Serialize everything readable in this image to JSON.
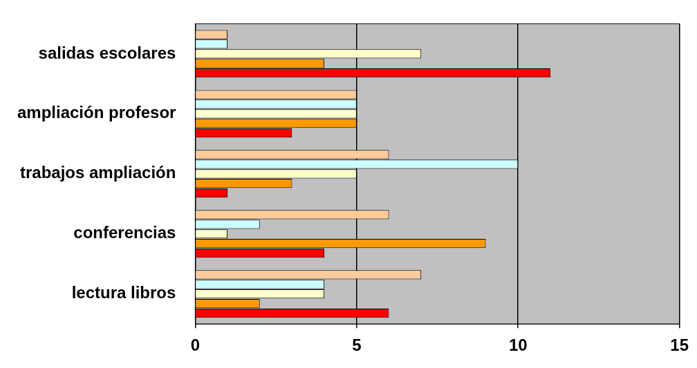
{
  "chart_data": {
    "type": "bar",
    "orientation": "horizontal",
    "categories": [
      "salidas escolares",
      "ampliación profesor",
      "trabajos ampliación",
      "conferencias",
      "lectura libros"
    ],
    "series": [
      {
        "color": "#ffcc99",
        "values": [
          1,
          5,
          6,
          6,
          7
        ]
      },
      {
        "color": "#ccffff",
        "values": [
          1,
          5,
          10,
          2,
          4
        ]
      },
      {
        "color": "#ffffcc",
        "values": [
          7,
          5,
          5,
          1,
          4
        ]
      },
      {
        "color": "#ff9900",
        "values": [
          4,
          5,
          3,
          9,
          2
        ]
      },
      {
        "color": "#ff0000",
        "values": [
          11,
          3,
          1,
          4,
          6
        ]
      }
    ],
    "xlim": [
      0,
      15
    ],
    "xticks": [
      0,
      5,
      10,
      15
    ],
    "grid": "x",
    "legend": false
  }
}
